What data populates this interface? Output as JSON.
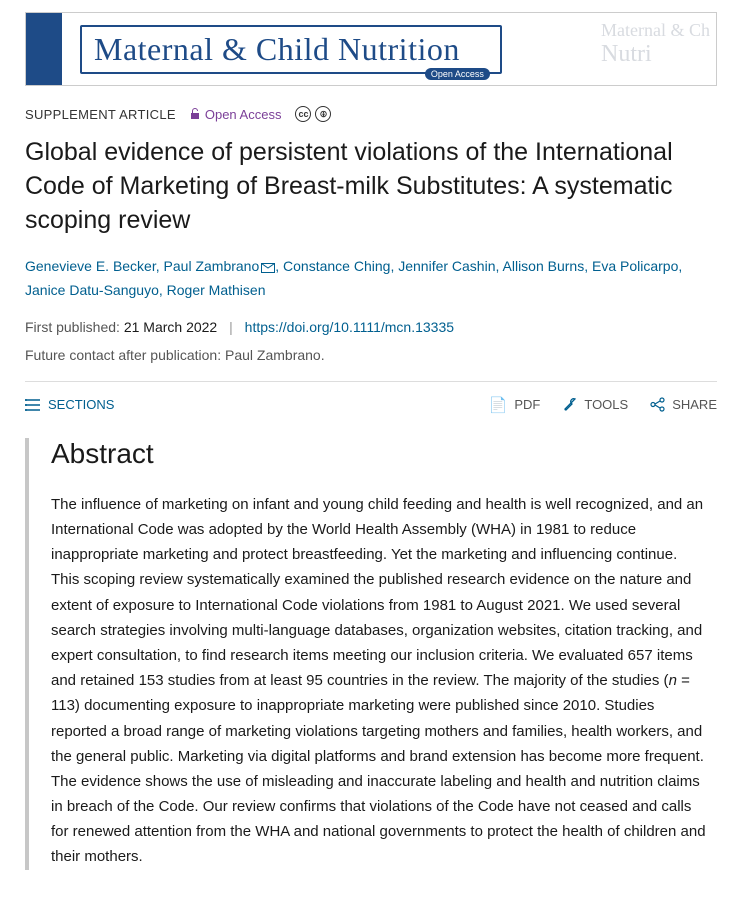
{
  "journal": {
    "name": "Maternal & Child Nutrition",
    "open_access_badge": "Open Access",
    "ghost_line1": "Maternal & Ch",
    "ghost_line2": "Nutri",
    "banner_bar_color": "#1e4b87",
    "banner_text_color": "#1e4b87"
  },
  "article": {
    "type": "SUPPLEMENT ARTICLE",
    "open_access_label": "Open Access",
    "title": "Global evidence of persistent violations of the International Code of Marketing of Breast-milk Substitutes: A systematic scoping review",
    "authors": [
      {
        "name": "Genevieve E. Becker",
        "corresponding": false
      },
      {
        "name": "Paul Zambrano",
        "corresponding": true
      },
      {
        "name": "Constance Ching",
        "corresponding": false
      },
      {
        "name": "Jennifer Cashin",
        "corresponding": false
      },
      {
        "name": "Allison Burns",
        "corresponding": false
      },
      {
        "name": "Eva Policarpo",
        "corresponding": false
      },
      {
        "name": "Janice Datu-Sanguyo",
        "corresponding": false
      },
      {
        "name": "Roger Mathisen",
        "corresponding": false
      }
    ],
    "first_published_label": "First published:",
    "first_published_date": "21 March 2022",
    "doi_url": "https://doi.org/10.1111/mcn.13335",
    "contact_note": "Future contact after publication: Paul Zambrano."
  },
  "toolbar": {
    "sections_label": "SECTIONS",
    "pdf_label": "PDF",
    "tools_label": "TOOLS",
    "share_label": "SHARE"
  },
  "abstract": {
    "heading": "Abstract",
    "text_pre": "The influence of marketing on infant and young child feeding and health is well recognized, and an International Code was adopted by the World Health Assembly (WHA) in 1981 to reduce inappropriate marketing and protect breastfeeding. Yet the marketing and influencing continue. This scoping review systematically examined the published research evidence on the nature and extent of exposure to International Code violations from 1981 to August 2021. We used several search strategies involving multi-language databases, organization websites, citation tracking, and expert consultation, to find research items meeting our inclusion criteria. We evaluated 657 items and retained 153 studies from at least 95 countries in the review. The majority of the studies (",
    "n_label": "n",
    "n_value": " = 113",
    "text_post": ") documenting exposure to inappropriate marketing were published since 2010. Studies reported a broad range of marketing violations targeting mothers and families, health workers, and the general public. Marketing via digital platforms and brand extension has become more frequent. The evidence shows the use of misleading and inaccurate labeling and health and nutrition claims in breach of the Code. Our review confirms that violations of the Code have not ceased and calls for renewed attention from the WHA and national governments to protect the health of children and their mothers."
  },
  "colors": {
    "link": "#005f8f",
    "oa_purple": "#7b3f98",
    "pdf_red": "#c4302b",
    "text": "#1a1a1a",
    "muted": "#555555",
    "abstract_bar": "#c7c7c7"
  }
}
